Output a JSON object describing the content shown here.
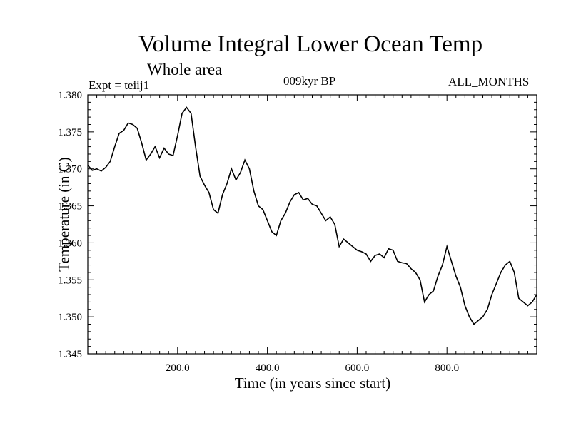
{
  "chart_data": {
    "type": "line",
    "title": "Volume Integral Lower Ocean Temp",
    "subtitle": "Whole area",
    "annotations": {
      "experiment": "Expt = teiij1",
      "period": "009kyr BP",
      "months": "ALL_MONTHS"
    },
    "xlabel": "Time (in years since start)",
    "ylabel": "Temperature (in C)",
    "xlim": [
      0,
      1000
    ],
    "ylim": [
      1.345,
      1.38
    ],
    "xticks": [
      200,
      400,
      600,
      800
    ],
    "xtick_labels": [
      "200.0",
      "400.0",
      "600.0",
      "800.0"
    ],
    "yticks": [
      1.345,
      1.35,
      1.355,
      1.36,
      1.365,
      1.37,
      1.375,
      1.38
    ],
    "ytick_labels": [
      "1.345",
      "1.350",
      "1.355",
      "1.360",
      "1.365",
      "1.370",
      "1.375",
      "1.380"
    ],
    "grid": false,
    "series": [
      {
        "x": [
          0,
          10,
          20,
          30,
          40,
          50,
          60,
          70,
          80,
          90,
          100,
          110,
          120,
          130,
          140,
          150,
          160,
          170,
          180,
          190,
          200,
          210,
          220,
          230,
          240,
          250,
          260,
          270,
          280,
          290,
          300,
          310,
          320,
          330,
          340,
          350,
          360,
          370,
          380,
          390,
          400,
          410,
          420,
          430,
          440,
          450,
          460,
          470,
          480,
          490,
          500,
          510,
          520,
          530,
          540,
          550,
          560,
          570,
          580,
          590,
          600,
          610,
          620,
          630,
          640,
          650,
          660,
          670,
          680,
          690,
          700,
          710,
          720,
          730,
          740,
          750,
          760,
          770,
          780,
          790,
          800,
          810,
          820,
          830,
          840,
          850,
          860,
          870,
          880,
          890,
          900,
          910,
          920,
          930,
          940,
          950,
          960,
          970,
          980,
          990,
          1000
        ],
        "values": [
          1.3705,
          1.3698,
          1.37,
          1.3697,
          1.3702,
          1.371,
          1.373,
          1.3748,
          1.3752,
          1.3762,
          1.376,
          1.3755,
          1.3735,
          1.3712,
          1.372,
          1.373,
          1.3715,
          1.3728,
          1.372,
          1.3718,
          1.3745,
          1.3775,
          1.3783,
          1.3775,
          1.373,
          1.369,
          1.3678,
          1.3668,
          1.3645,
          1.364,
          1.3665,
          1.368,
          1.37,
          1.3685,
          1.3695,
          1.3712,
          1.37,
          1.367,
          1.365,
          1.3645,
          1.363,
          1.3615,
          1.361,
          1.363,
          1.364,
          1.3655,
          1.3665,
          1.3668,
          1.3658,
          1.366,
          1.3652,
          1.365,
          1.364,
          1.363,
          1.3635,
          1.3625,
          1.3595,
          1.3605,
          1.36,
          1.3595,
          1.359,
          1.3588,
          1.3585,
          1.3575,
          1.3583,
          1.3585,
          1.358,
          1.3592,
          1.359,
          1.3575,
          1.3573,
          1.3572,
          1.3565,
          1.356,
          1.355,
          1.352,
          1.353,
          1.3535,
          1.3555,
          1.357,
          1.3595,
          1.3575,
          1.3555,
          1.354,
          1.3515,
          1.35,
          1.349,
          1.3495,
          1.35,
          1.351,
          1.353,
          1.3545,
          1.356,
          1.357,
          1.3575,
          1.356,
          1.3525,
          1.352,
          1.3515,
          1.352,
          1.353
        ]
      }
    ]
  }
}
